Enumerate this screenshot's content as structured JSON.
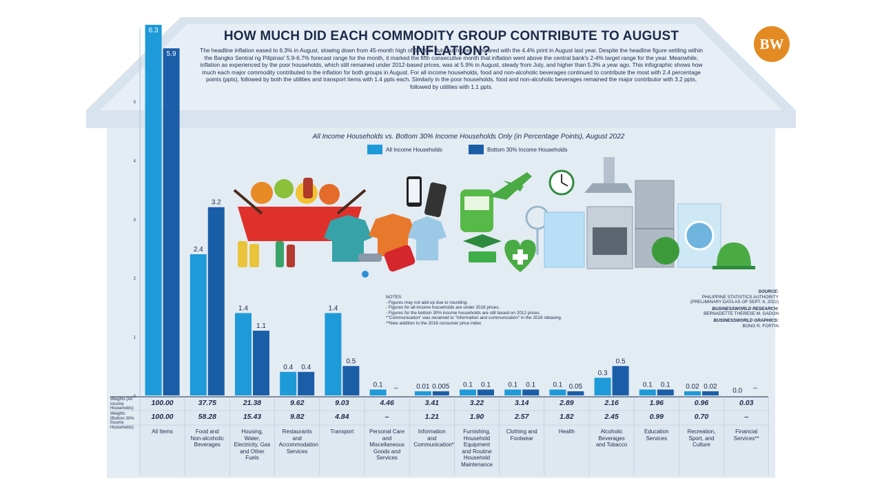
{
  "title": "HOW MUCH DID EACH COMMODITY GROUP CONTRIBUTE TO AUGUST INFLATION?",
  "intro": "The headline inflation eased to 6.3% in August, slowing down from 45-month high of 6.4% in July but higher compared with the 4.4% print in August last year. Despite the headline figure settling within the Bangko Sentral ng Pilipinas' 5.9-6.7% forecast range for the month, it marked the fifth consecutive month that inflation went above the central bank's 2-4% target range for the year. Meanwhile, inflation as experienced by the poor households, which still remained under 2012-based prices, was at 5.9% in August, steady from July, and higher than 5.3% a year ago. This infographic shows how much each major commodity contributed to the inflation for both groups in August. For all income households, food and non-alcoholic beverages continued to contribute the most with 2.4 percentage points (ppts), followed by both the utilities and transport items with 1.4 ppts each. Similarly in the poor households, food and non-alcoholic beverages remained the major contributor with 3.2 ppts, followed by utilities with 1.1 ppts.",
  "logo_text": "BW",
  "colors": {
    "all_income": "#1e9ad8",
    "bottom30": "#1b5ea8",
    "house": "#dde6ef",
    "roof": "#cfdbe7",
    "text": "#1b2a4a",
    "logo": "#e38b22"
  },
  "icons": [
    "food-basket-icon",
    "cooking-oil-icon",
    "shirt-icon",
    "mobile-phone-icon",
    "bus-icon",
    "airplane-icon",
    "fan-icon",
    "graduation-cap-icon",
    "health-heart-icon",
    "clock-icon",
    "range-hood-icon",
    "stove-icon",
    "refrigerator-icon",
    "washing-machine-icon",
    "globe-icon",
    "food-cloche-icon",
    "gas-pump-icon",
    "water-faucet-icon"
  ],
  "notes": {
    "heading": "NOTES:",
    "lines": [
      "- Figures may not add up due to rounding.",
      "- Figures for all income households are under 2018 prices.",
      "- Figures for the bottom 30% income households are still based on 2012 prices.",
      "*\"Communication\" was renamed to \"Information and communication\" in the 2018 rebasing.",
      "**New addition to the 2018 consumer price index"
    ]
  },
  "credits": {
    "source_label": "SOURCE:",
    "source_lines": [
      "PHILIPPINE STATISTICS AUTHORITY",
      "(PRELIMINARY DATA AS OF SEPT. 6, 2022)"
    ],
    "research_label": "BUSINESSWORLD RESEARCH:",
    "research_name": "BERNADETTE THERESE M. GADON",
    "graphics_label": "BUSINESSWORLD GRAPHICS:",
    "graphics_name": "BONG R. FORTIN"
  },
  "table_labels": {
    "weights_all": "Weights (All Income Households)",
    "weights_bottom": "Weights (Bottom 30% Income Households)"
  },
  "chart_data": {
    "type": "bar",
    "title": "All Income Households vs. Bottom 30% Income Households Only (in Percentage Points), August 2022",
    "ylim": [
      0,
      6.3
    ],
    "yticks": [
      "0",
      "1",
      "2",
      "3",
      "4",
      "5"
    ],
    "categories": [
      "All Items",
      "Food and Non-alcoholic Beverages",
      "Housing, Water, Electricity, Gas and Other Fuels",
      "Restaurants and Accommodation Services",
      "Transport",
      "Personal Care and Miscellaneous Goods and Services",
      "Information and Communication*",
      "Furnishing, Household Equipment and Routine Household Maintenance",
      "Clothing and Footwear",
      "Health",
      "Alcoholic Beverages and Tobacco",
      "Education Services",
      "Recreation, Sport, and Culture",
      "Financial Services**"
    ],
    "series": [
      {
        "name": "All Income Households",
        "values": [
          6.3,
          2.4,
          1.4,
          0.4,
          1.4,
          0.1,
          0.01,
          0.1,
          0.1,
          0.1,
          0.3,
          0.1,
          0.02,
          0.0
        ],
        "labels": [
          "6.3",
          "2.4",
          "1.4",
          "0.4",
          "1.4",
          "0.1",
          "0.01",
          "0.1",
          "0.1",
          "0.1",
          "0.3",
          "0.1",
          "0.02",
          "0.0"
        ]
      },
      {
        "name": "Bottom 30% Income Households",
        "values": [
          5.9,
          3.2,
          1.1,
          0.4,
          0.5,
          null,
          0.005,
          0.1,
          0.1,
          0.05,
          0.5,
          0.1,
          0.02,
          null
        ],
        "labels": [
          "5.9",
          "3.2",
          "1.1",
          "0.4",
          "0.5",
          "–",
          "0.005",
          "0.1",
          "0.1",
          "0.05",
          "0.5",
          "0.1",
          "0.02",
          "–"
        ]
      }
    ],
    "weights_all": [
      "100.00",
      "37.75",
      "21.38",
      "9.62",
      "9.03",
      "4.46",
      "3.41",
      "3.22",
      "3.14",
      "2.89",
      "2.16",
      "1.96",
      "0.96",
      "0.03"
    ],
    "weights_bottom30": [
      "100.00",
      "58.28",
      "15.43",
      "9.82",
      "4.84",
      "–",
      "1.21",
      "1.90",
      "2.57",
      "1.82",
      "2.45",
      "0.99",
      "0.70",
      "–"
    ]
  }
}
